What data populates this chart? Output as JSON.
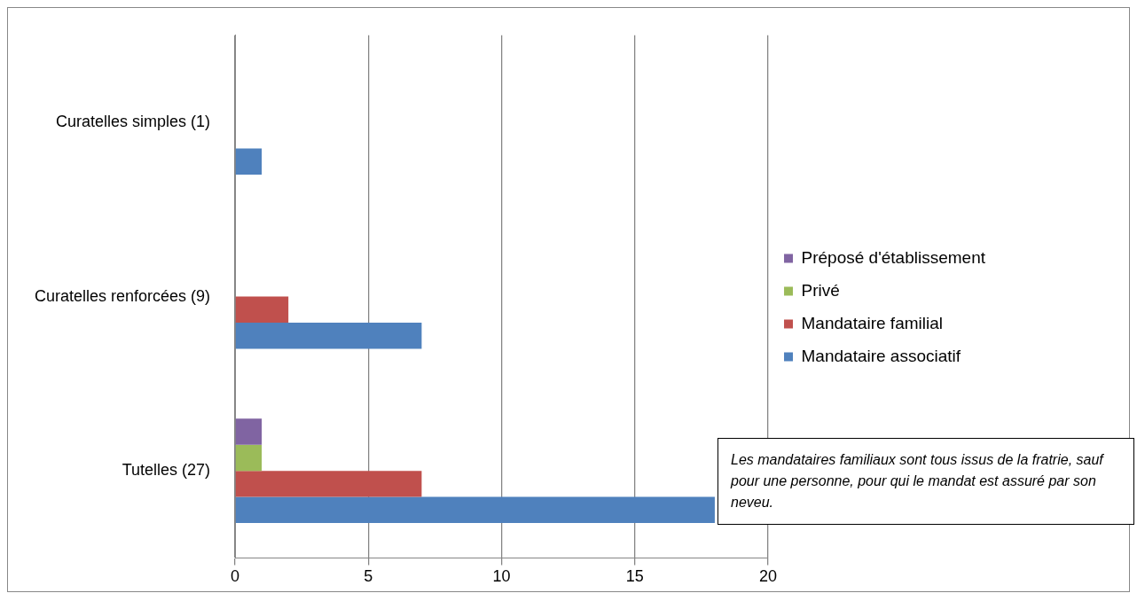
{
  "chart_data": {
    "type": "bar",
    "orientation": "horizontal",
    "categories": [
      "Curatelles simples (1)",
      "Curatelles renforcées (9)",
      "Tutelles (27)"
    ],
    "series": [
      {
        "name": "Préposé d'établissement",
        "color": "#8064a2",
        "values": [
          0,
          0,
          1
        ]
      },
      {
        "name": "Privé",
        "color": "#9bbb59",
        "values": [
          0,
          0,
          1
        ]
      },
      {
        "name": "Mandataire familial",
        "color": "#c0504d",
        "values": [
          0,
          2,
          7
        ]
      },
      {
        "name": "Mandataire associatif",
        "color": "#4f81bd",
        "values": [
          1,
          7,
          18
        ]
      }
    ],
    "xlim": [
      0,
      20
    ],
    "xticks": [
      0,
      5,
      10,
      15,
      20
    ],
    "grid": "x",
    "legend": "right",
    "annotations": [
      "Les mandataires familiaux sont tous issus de la fratrie, sauf pour une personne, pour qui le mandat est assuré par son neveu."
    ]
  }
}
